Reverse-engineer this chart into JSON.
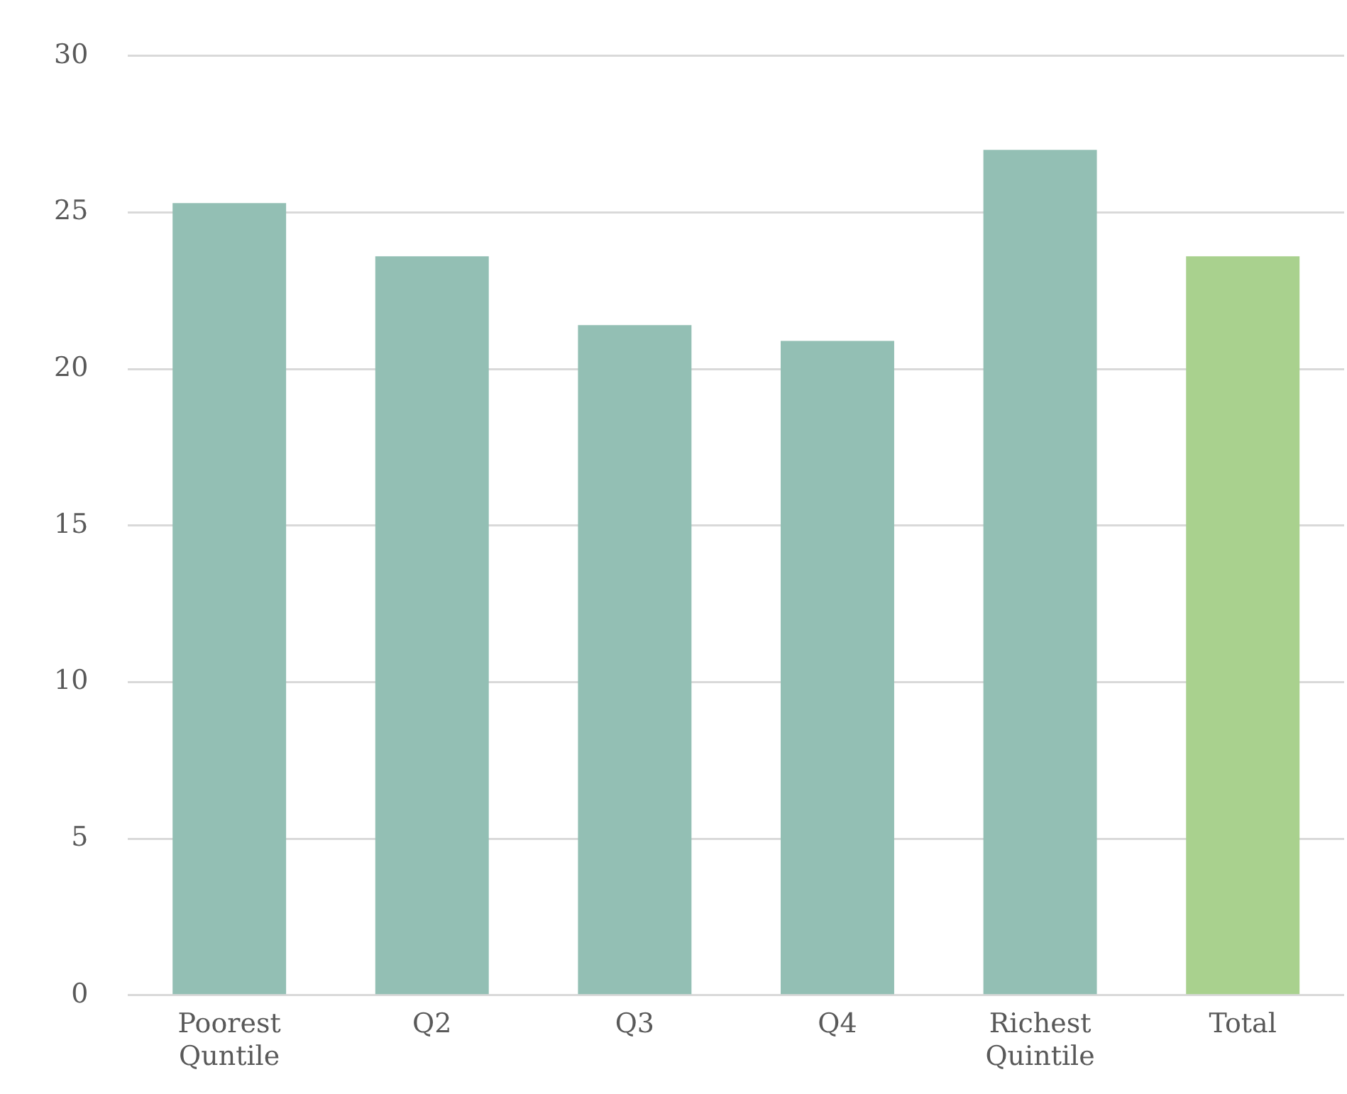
{
  "chart_data": {
    "type": "bar",
    "categories": [
      "Poorest Quntile",
      "Q2",
      "Q3",
      "Q4",
      "Richest Quintile",
      "Total"
    ],
    "values": [
      25.3,
      23.6,
      21.4,
      20.9,
      27.0,
      23.6
    ],
    "colors": [
      "#93bfb4",
      "#93bfb4",
      "#93bfb4",
      "#93bfb4",
      "#93bfb4",
      "#a9d18e"
    ],
    "ylim": [
      0,
      30
    ],
    "yticks": [
      0,
      5,
      10,
      15,
      20,
      25,
      30
    ],
    "grid": "y",
    "legend": false
  }
}
